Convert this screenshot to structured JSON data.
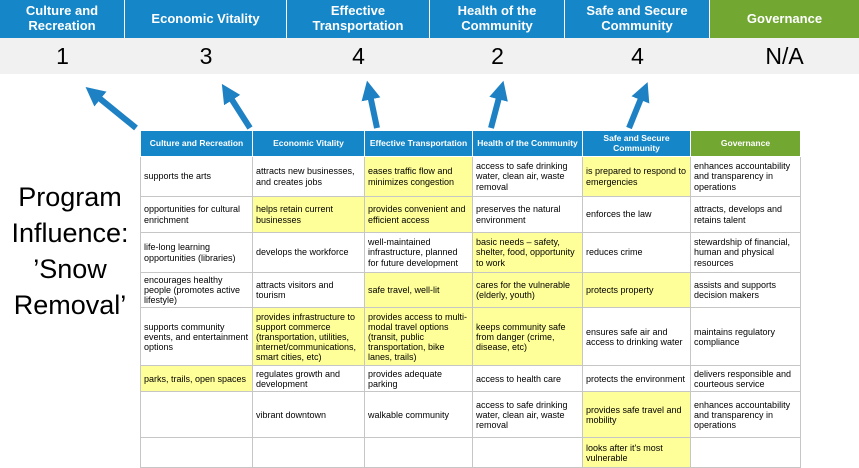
{
  "colors": {
    "blue": "#1586C8",
    "green": "#72A832",
    "yellow": "#FFFF99",
    "score_bg": "#F1F1F1",
    "arrow": "#1E81C4",
    "grid": "#C6C6C6"
  },
  "program_label": "Program Influence: ’Snow Removal’",
  "scoreboard": {
    "columns": [
      {
        "label": "Culture and Recreation",
        "score": "1",
        "theme": "blue"
      },
      {
        "label": "Economic Vitality",
        "score": "3",
        "theme": "blue"
      },
      {
        "label": "Effective Transportation",
        "score": "4",
        "theme": "blue"
      },
      {
        "label": "Health of the Community",
        "score": "2",
        "theme": "blue"
      },
      {
        "label": "Safe and Secure Community",
        "score": "4",
        "theme": "blue"
      },
      {
        "label": "Governance",
        "score": "N/A",
        "theme": "green"
      }
    ]
  },
  "matrix": {
    "headers": [
      {
        "label": "Culture and Recreation",
        "theme": "blue"
      },
      {
        "label": "Economic Vitality",
        "theme": "blue"
      },
      {
        "label": "Effective Transportation",
        "theme": "blue"
      },
      {
        "label": "Health of the Community",
        "theme": "blue"
      },
      {
        "label": "Safe and Secure Community",
        "theme": "blue"
      },
      {
        "label": "Governance",
        "theme": "green"
      }
    ],
    "rows": [
      {
        "cells": [
          {
            "text": "supports the arts",
            "highlight": false
          },
          {
            "text": "attracts new businesses, and creates jobs",
            "highlight": false
          },
          {
            "text": "eases traffic flow and minimizes congestion",
            "highlight": true
          },
          {
            "text": "access to safe drinking water, clean air, waste removal",
            "highlight": false
          },
          {
            "text": "is prepared to respond to emergencies",
            "highlight": true
          },
          {
            "text": "enhances accountability and transparency in operations",
            "highlight": false
          }
        ]
      },
      {
        "cells": [
          {
            "text": "opportunities for cultural enrichment",
            "highlight": false
          },
          {
            "text": "helps retain current businesses",
            "highlight": true
          },
          {
            "text": "provides convenient and efficient access",
            "highlight": true
          },
          {
            "text": "preserves the natural environment",
            "highlight": false
          },
          {
            "text": "enforces the law",
            "highlight": false
          },
          {
            "text": "attracts, develops and retains talent",
            "highlight": false
          }
        ]
      },
      {
        "cells": [
          {
            "text": "life-long learning opportunities (libraries)",
            "highlight": false
          },
          {
            "text": "develops the workforce",
            "highlight": false
          },
          {
            "text": "well-maintained infrastructure, planned for future development",
            "highlight": false
          },
          {
            "text": "basic needs – safety, shelter, food, opportunity to work",
            "highlight": true
          },
          {
            "text": "reduces crime",
            "highlight": false
          },
          {
            "text": "stewardship of financial, human and physical resources",
            "highlight": false
          }
        ]
      },
      {
        "cells": [
          {
            "text": "encourages healthy people (promotes active lifestyle)",
            "highlight": false
          },
          {
            "text": "attracts visitors and tourism",
            "highlight": false
          },
          {
            "text": "safe travel, well-lit",
            "highlight": true
          },
          {
            "text": "cares for the vulnerable (elderly, youth)",
            "highlight": true
          },
          {
            "text": "protects property",
            "highlight": true
          },
          {
            "text": "assists and supports decision makers",
            "highlight": false
          }
        ]
      },
      {
        "cells": [
          {
            "text": "supports community events, and entertainment options",
            "highlight": false
          },
          {
            "text": "provides infrastructure to support commerce (transportation, utilities, internet/communications, smart cities, etc)",
            "highlight": true
          },
          {
            "text": "provides access to multi-modal travel options (transit, public transportation, bike lanes, trails)",
            "highlight": true
          },
          {
            "text": "keeps community safe from danger (crime, disease, etc)",
            "highlight": true
          },
          {
            "text": "ensures safe air and access to drinking water",
            "highlight": false
          },
          {
            "text": "maintains regulatory compliance",
            "highlight": false
          }
        ]
      },
      {
        "cells": [
          {
            "text": "parks, trails, open spaces",
            "highlight": true
          },
          {
            "text": "regulates growth and development",
            "highlight": false
          },
          {
            "text": "provides adequate parking",
            "highlight": false
          },
          {
            "text": "access to health care",
            "highlight": false
          },
          {
            "text": "protects the environment",
            "highlight": false
          },
          {
            "text": "delivers responsible and courteous service",
            "highlight": false
          }
        ]
      },
      {
        "cells": [
          {
            "text": "",
            "highlight": false
          },
          {
            "text": "vibrant downtown",
            "highlight": false
          },
          {
            "text": "walkable community",
            "highlight": false
          },
          {
            "text": "access to safe drinking water, clean air, waste removal",
            "highlight": false
          },
          {
            "text": "provides safe travel and mobility",
            "highlight": true
          },
          {
            "text": "enhances accountability and transparency in operations",
            "highlight": false
          }
        ]
      },
      {
        "cells": [
          {
            "text": "",
            "highlight": false
          },
          {
            "text": "",
            "highlight": false
          },
          {
            "text": "",
            "highlight": false
          },
          {
            "text": "",
            "highlight": false
          },
          {
            "text": "looks after it's most vulnerable",
            "highlight": true
          },
          {
            "text": "",
            "highlight": false
          }
        ]
      }
    ]
  }
}
